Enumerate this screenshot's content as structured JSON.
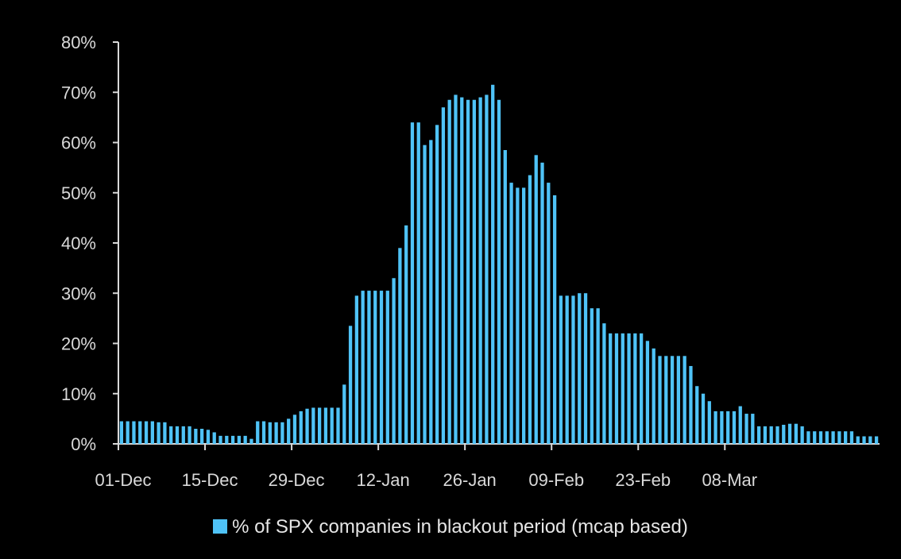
{
  "chart_data": {
    "type": "bar",
    "x_start": "01-Dec",
    "x_ticks": [
      "01-Dec",
      "15-Dec",
      "29-Dec",
      "12-Jan",
      "26-Jan",
      "09-Feb",
      "23-Feb",
      "08-Mar"
    ],
    "y_ticks": [
      "0%",
      "10%",
      "20%",
      "30%",
      "40%",
      "50%",
      "60%",
      "70%",
      "80%"
    ],
    "ylim": [
      0,
      80
    ],
    "series": [
      {
        "name": "% of SPX companies in blackout period (mcap based)",
        "color": "#4fc3f7",
        "values": [
          4.5,
          4.5,
          4.5,
          4.5,
          4.5,
          4.5,
          4.3,
          4.3,
          3.5,
          3.5,
          3.5,
          3.5,
          3.0,
          3.0,
          2.8,
          2.3,
          1.6,
          1.6,
          1.6,
          1.6,
          1.6,
          1.0,
          4.5,
          4.5,
          4.3,
          4.3,
          4.3,
          5.0,
          5.8,
          6.5,
          7.0,
          7.2,
          7.2,
          7.2,
          7.2,
          7.2,
          11.8,
          23.5,
          29.5,
          30.5,
          30.5,
          30.5,
          30.5,
          30.5,
          33.0,
          39.0,
          43.5,
          64.0,
          64.0,
          59.5,
          60.5,
          63.5,
          67.0,
          68.5,
          69.5,
          69.0,
          68.5,
          68.5,
          69.0,
          69.5,
          71.5,
          68.5,
          58.5,
          52.0,
          51.0,
          51.0,
          53.5,
          57.5,
          56.0,
          52.0,
          49.5,
          29.5,
          29.5,
          29.5,
          30.0,
          30.0,
          27.0,
          27.0,
          24.0,
          22.0,
          22.0,
          22.0,
          22.0,
          22.0,
          22.0,
          20.5,
          19.0,
          17.5,
          17.5,
          17.5,
          17.5,
          17.5,
          15.5,
          11.5,
          10.0,
          8.5,
          6.5,
          6.5,
          6.5,
          6.5,
          7.5,
          6.0,
          6.0,
          3.5,
          3.5,
          3.5,
          3.5,
          3.8,
          4.0,
          4.0,
          3.5,
          2.5,
          2.5,
          2.5,
          2.5,
          2.5,
          2.5,
          2.5,
          2.5,
          1.5,
          1.5,
          1.5,
          1.5
        ]
      }
    ],
    "legend_position": "bottom-center",
    "grid": false
  }
}
